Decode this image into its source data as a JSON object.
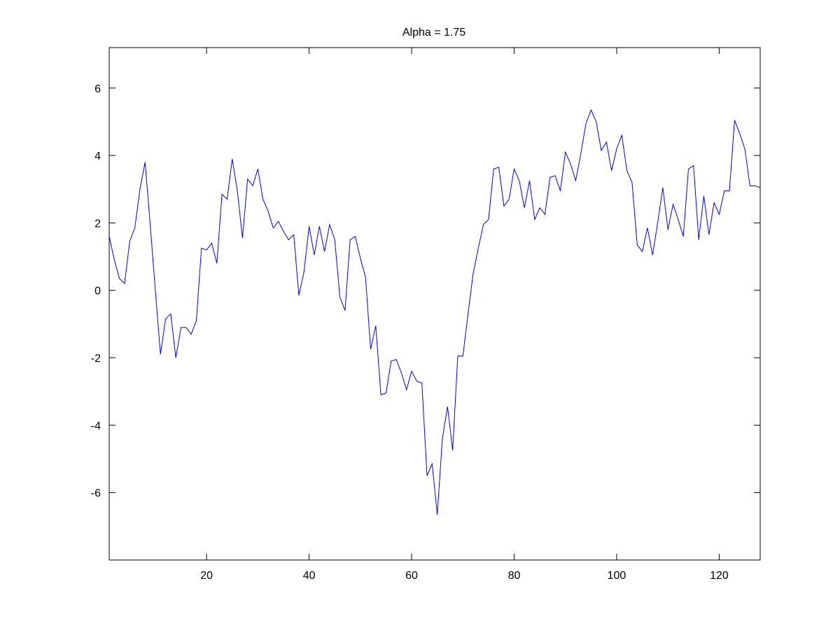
{
  "chart_data": {
    "type": "line",
    "title": "Alpha = 1.75",
    "xlabel": "",
    "ylabel": "",
    "xlim": [
      1,
      128
    ],
    "ylim": [
      -8,
      7.2
    ],
    "xticks": [
      20,
      40,
      60,
      80,
      100,
      120
    ],
    "xtick_labels": [
      "20",
      "40",
      "60",
      "80",
      "100",
      "120"
    ],
    "yticks": [
      -6,
      -4,
      -2,
      0,
      2,
      4,
      6
    ],
    "ytick_labels": [
      "-6",
      "-4",
      "-2",
      "0",
      "2",
      "4",
      "6"
    ],
    "grid": false,
    "series": [
      {
        "color": "#0000ff",
        "x": [
          1,
          2,
          3,
          4,
          5,
          6,
          7,
          8,
          9,
          10,
          11,
          12,
          13,
          14,
          15,
          16,
          17,
          18,
          19,
          20,
          21,
          22,
          23,
          24,
          25,
          26,
          27,
          28,
          29,
          30,
          31,
          32,
          33,
          34,
          35,
          36,
          37,
          38,
          39,
          40,
          41,
          42,
          43,
          44,
          45,
          46,
          47,
          48,
          49,
          50,
          51,
          52,
          53,
          54,
          55,
          56,
          57,
          58,
          59,
          60,
          61,
          62,
          63,
          64,
          65,
          66,
          67,
          68,
          69,
          70,
          71,
          72,
          73,
          74,
          75,
          76,
          77,
          78,
          79,
          80,
          81,
          82,
          83,
          84,
          85,
          86,
          87,
          88,
          89,
          90,
          91,
          92,
          93,
          94,
          95,
          96,
          97,
          98,
          99,
          100,
          101,
          102,
          103,
          104,
          105,
          106,
          107,
          108,
          109,
          110,
          111,
          112,
          113,
          114,
          115,
          116,
          117,
          118,
          119,
          120,
          121,
          122,
          123,
          124,
          125,
          126,
          127,
          128
        ],
        "y": [
          1.6,
          0.9,
          0.35,
          0.2,
          1.45,
          1.85,
          3.0,
          3.8,
          1.95,
          0.0,
          -1.9,
          -0.85,
          -0.7,
          -2.0,
          -1.1,
          -1.1,
          -1.3,
          -0.9,
          1.25,
          1.2,
          1.4,
          0.8,
          2.85,
          2.7,
          3.9,
          2.95,
          1.55,
          3.3,
          3.1,
          3.6,
          2.7,
          2.35,
          1.85,
          2.05,
          1.75,
          1.5,
          1.65,
          -0.15,
          0.55,
          1.9,
          1.05,
          1.9,
          1.15,
          1.95,
          1.5,
          -0.2,
          -0.6,
          1.5,
          1.6,
          0.95,
          0.4,
          -1.75,
          -1.05,
          -3.1,
          -3.05,
          -2.1,
          -2.05,
          -2.45,
          -2.95,
          -2.4,
          -2.7,
          -2.75,
          -5.5,
          -5.15,
          -6.65,
          -4.4,
          -3.45,
          -4.75,
          -1.95,
          -1.95,
          -0.7,
          0.5,
          1.25,
          1.95,
          2.1,
          3.6,
          3.65,
          2.5,
          2.7,
          3.6,
          3.25,
          2.45,
          3.25,
          2.1,
          2.45,
          2.25,
          3.35,
          3.4,
          2.95,
          4.1,
          3.75,
          3.25,
          4.05,
          4.95,
          5.35,
          5.0,
          4.15,
          4.4,
          3.55,
          4.2,
          4.6,
          3.55,
          3.2,
          1.35,
          1.15,
          1.85,
          1.05,
          2.0,
          3.05,
          1.8,
          2.55,
          2.1,
          1.6,
          3.6,
          3.7,
          1.5,
          2.8,
          1.65,
          2.6,
          2.25,
          2.95,
          2.95,
          5.05,
          4.65,
          4.2,
          3.1,
          3.1,
          3.05
        ]
      }
    ]
  }
}
